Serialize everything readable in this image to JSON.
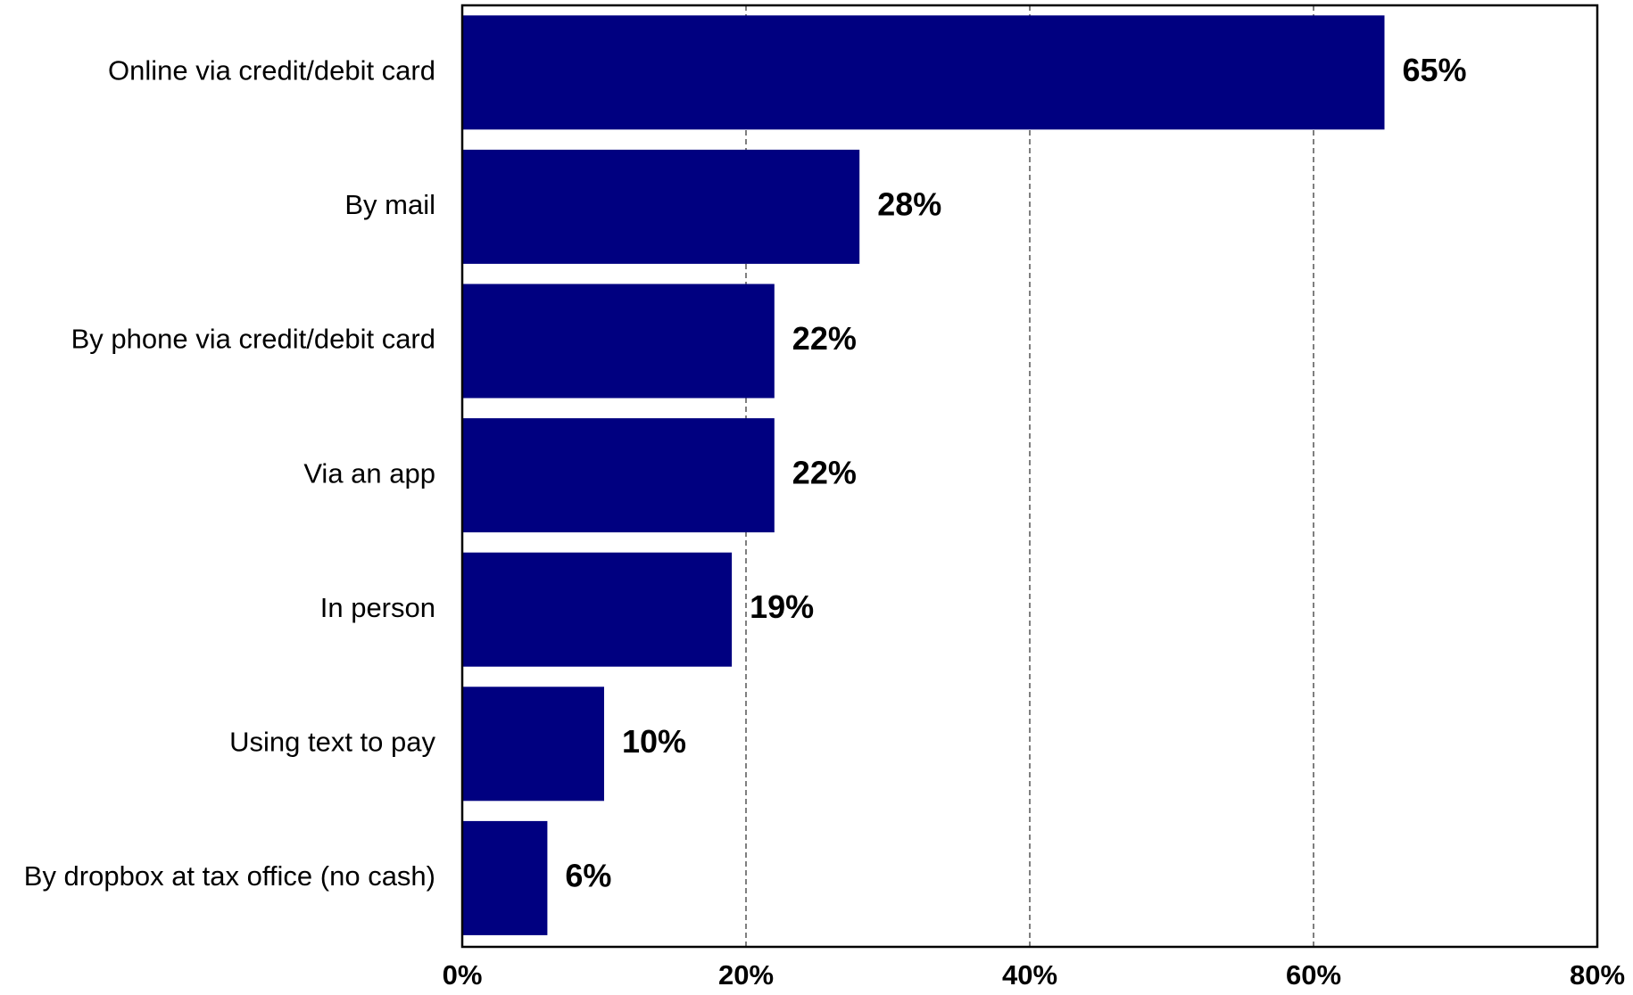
{
  "chart_data": {
    "type": "bar",
    "orientation": "horizontal",
    "categories": [
      "Online via credit/debit card",
      "By mail",
      "By phone via credit/debit card",
      "Via an app",
      "In person",
      "Using text to pay",
      "By dropbox at tax office (no cash)"
    ],
    "values": [
      65,
      28,
      22,
      22,
      19,
      10,
      6
    ],
    "value_labels": [
      "65%",
      "28%",
      "22%",
      "22%",
      "19%",
      "10%",
      "6%"
    ],
    "xlim": [
      0,
      80
    ],
    "x_ticks": [
      0,
      20,
      40,
      60,
      80
    ],
    "x_tick_labels": [
      "0%",
      "20%",
      "40%",
      "60%",
      "80%"
    ],
    "grid": "vertical dashed",
    "bar_color": "#000080",
    "title": "",
    "xlabel": "",
    "ylabel": ""
  }
}
